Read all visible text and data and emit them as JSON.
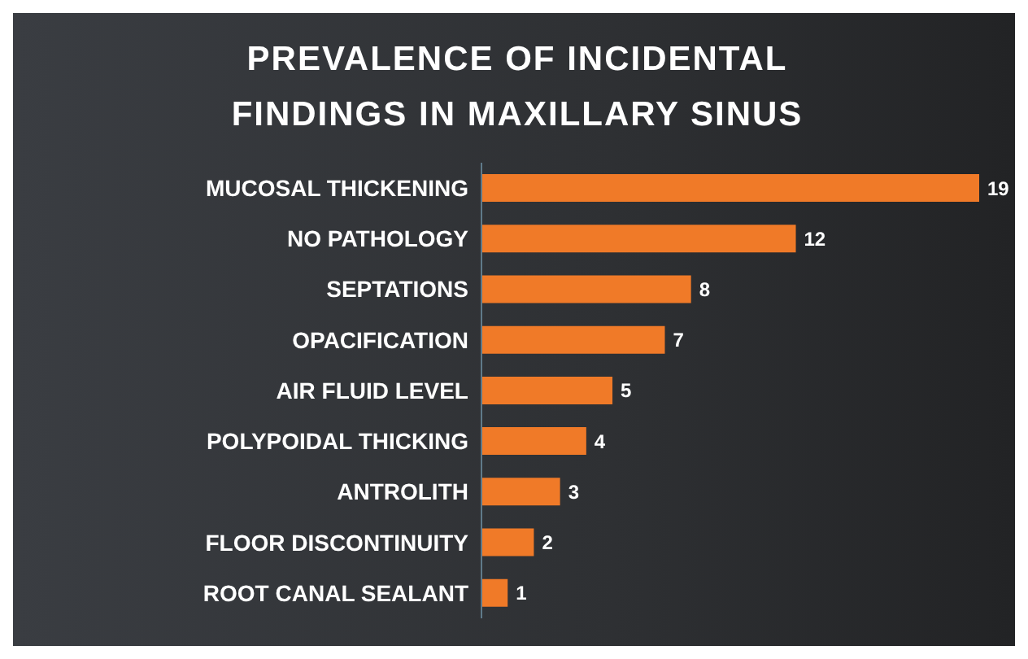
{
  "chart_data": {
    "type": "bar",
    "title": "PREVALENCE OF INCIDENTAL FINDINGS IN MAXILLARY SINUS",
    "orientation": "horizontal",
    "categories": [
      "MUCOSAL THICKENING",
      "NO PATHOLOGY",
      "SEPTATIONS",
      "OPACIFICATION",
      "AIR FLUID LEVEL",
      "POLYPOIDAL THICKING",
      "ANTROLITH",
      "FLOOR DISCONTINUITY",
      "ROOT CANAL SEALANT"
    ],
    "values": [
      19,
      12,
      8,
      7,
      5,
      4,
      3,
      2,
      1
    ],
    "color": "#f07a28",
    "data_labels": true
  }
}
